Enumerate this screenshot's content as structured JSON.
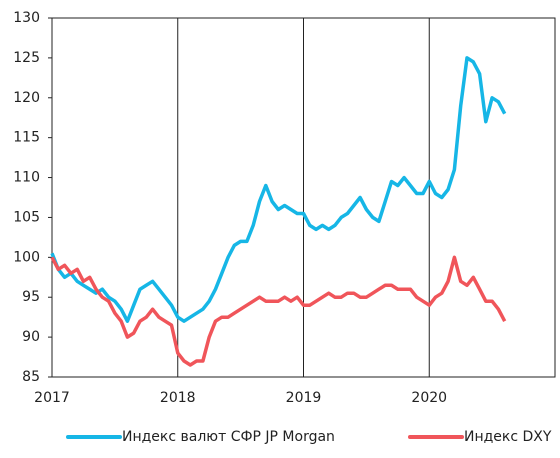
{
  "chart_data": {
    "type": "line",
    "x": [
      2017,
      2017.05,
      2017.1,
      2017.15,
      2017.2,
      2017.25,
      2017.3,
      2017.35,
      2017.4,
      2017.45,
      2017.5,
      2017.55,
      2017.6,
      2017.65,
      2017.7,
      2017.75,
      2017.8,
      2017.85,
      2017.9,
      2017.95,
      2018,
      2018.05,
      2018.1,
      2018.15,
      2018.2,
      2018.25,
      2018.3,
      2018.35,
      2018.4,
      2018.45,
      2018.5,
      2018.55,
      2018.6,
      2018.65,
      2018.7,
      2018.75,
      2018.8,
      2018.85,
      2018.9,
      2018.95,
      2019,
      2019.05,
      2019.1,
      2019.15,
      2019.2,
      2019.25,
      2019.3,
      2019.35,
      2019.4,
      2019.45,
      2019.5,
      2019.55,
      2019.6,
      2019.65,
      2019.7,
      2019.75,
      2019.8,
      2019.85,
      2019.9,
      2019.95,
      2020,
      2020.05,
      2020.1,
      2020.15,
      2020.2,
      2020.25,
      2020.3,
      2020.35,
      2020.4,
      2020.45,
      2020.5,
      2020.55,
      2020.6
    ],
    "series": [
      {
        "name": "Индекс валют СФР JP Morgan",
        "color": "#16b6e6",
        "values": [
          100.5,
          98.5,
          97.5,
          98,
          97,
          96.5,
          96,
          95.5,
          96,
          95,
          94.5,
          93.5,
          92,
          94,
          96,
          96.5,
          97,
          96,
          95,
          94,
          92.5,
          92,
          92.5,
          93,
          93.5,
          94.5,
          96,
          98,
          100,
          101.5,
          102,
          102,
          104,
          107,
          109,
          107,
          106,
          106.5,
          106,
          105.5,
          105.5,
          104,
          103.5,
          104,
          103.5,
          104,
          105,
          105.5,
          106.5,
          107.5,
          106,
          105,
          104.5,
          107,
          109.5,
          109,
          110,
          109,
          108,
          108,
          109.5,
          108,
          107.5,
          108.5,
          111,
          119,
          125,
          124.5,
          123,
          117,
          120,
          119.5,
          118
        ]
      },
      {
        "name": "Индекс DXY",
        "color": "#f0555a",
        "values": [
          100,
          98.5,
          99,
          98,
          98.5,
          97,
          97.5,
          96,
          95,
          94.5,
          93,
          92,
          90,
          90.5,
          92,
          92.5,
          93.5,
          92.5,
          92,
          91.5,
          88,
          87,
          86.5,
          87,
          87,
          90,
          92,
          92.5,
          92.5,
          93,
          93.5,
          94,
          94.5,
          95,
          94.5,
          94.5,
          94.5,
          95,
          94.5,
          95,
          94,
          94,
          94.5,
          95,
          95.5,
          95,
          95,
          95.5,
          95.5,
          95,
          95,
          95.5,
          96,
          96.5,
          96.5,
          96,
          96,
          96,
          95,
          94.5,
          94,
          95,
          95.5,
          97,
          100,
          97,
          96.5,
          97.5,
          96,
          94.5,
          94.5,
          93.5,
          92
        ]
      }
    ],
    "xlim": [
      2017,
      2021
    ],
    "xticks": [
      2017,
      2018,
      2019,
      2020
    ],
    "ylim": [
      85,
      130
    ],
    "yticks": [
      85,
      90,
      95,
      100,
      105,
      110,
      115,
      120,
      125,
      130
    ],
    "grid": "x",
    "legend": "bottom"
  }
}
